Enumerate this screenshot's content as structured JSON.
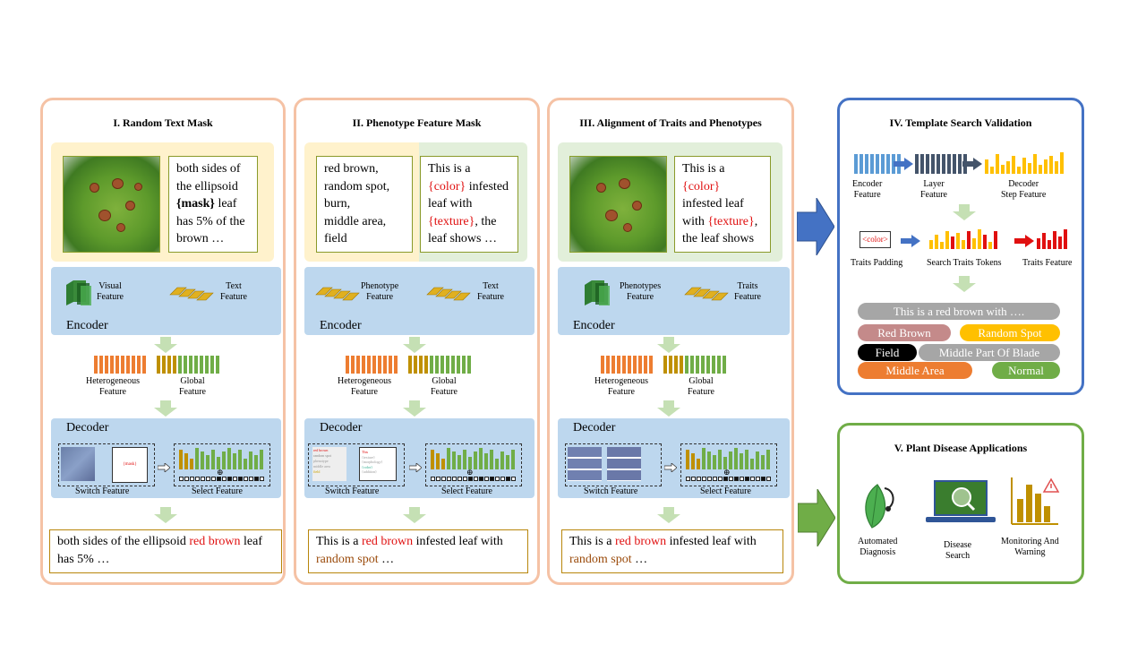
{
  "panels": {
    "p1": {
      "title": "I. Random  Text Mask",
      "text_a": "both sides of the ellipsoid ",
      "mask": "{mask}",
      "text_b": " leaf has 5% of the brown …",
      "visual": "Visual\nFeature",
      "textf": "Text\nFeature",
      "encoder": "Encoder",
      "hetero": "Heterogeneous\nFeature",
      "global": "Global\nFeature",
      "decoder": "Decoder",
      "mask_small": "{mask}",
      "switch": "Switch Feature",
      "select": "Select Feature",
      "out_a": "both sides of the ellipsoid ",
      "out_red": "red brown",
      "out_b": " leaf has 5% …"
    },
    "p2": {
      "title": "II. Phenotype  Feature Mask",
      "list": "red brown,\nrandom spot,\nburn,\nmiddle  area,\nfield",
      "t1": "This is a ",
      "t_color": "{color}",
      "t2": " infested leaf with ",
      "t_tex": "{texture}",
      "t3": ", the leaf shows …",
      "pheno": "Phenotype\nFeature",
      "textf": "Text\nFeature",
      "encoder": "Encoder",
      "hetero": "Heterogeneous\nFeature",
      "global": "Global\nFeature",
      "decoder": "Decoder",
      "switch": "Switch Feature",
      "select": "Select Feature",
      "mini_list": [
        "red brown",
        "random spot",
        "phenotype",
        "middle area",
        "field"
      ],
      "mini_r": [
        "This",
        "{texture}",
        "{morphology}",
        "{color}",
        "{addition}"
      ],
      "o1": "This is a ",
      "o_red": "red brown",
      "o2": " infested leaf with ",
      "o_brown": "random  spot",
      "o3": " …"
    },
    "p3": {
      "title": "III. Alignment of Traits and Phenotypes",
      "t1": "This is a ",
      "t_color": "{color}",
      "t2": " infested leaf with ",
      "t_tex": "{texture}",
      "t3": ", the leaf shows …",
      "pheno": "Phenotypes\nFeature",
      "traits": "Traits\nFeature",
      "encoder": "Encoder",
      "hetero": "Heterogeneous\nFeature",
      "global": "Global\nFeature",
      "decoder": "Decoder",
      "switch": "Switch Feature",
      "select": "Select Feature",
      "o1": "This is a ",
      "o_red": "red brown",
      "o2": " infested leaf with ",
      "o_brown": "random  spot",
      "o3": " …"
    },
    "p4": {
      "title": "IV. Template  Search Validation",
      "enc": "Encoder\nFeature",
      "layer": "Layer\nFeature",
      "dec": "Decoder\nStep Feature",
      "color_tag": "<color>",
      "pad": "Traits Padding",
      "search": "Search Traits Tokens",
      "traits": "Traits Feature",
      "sentence": "This is a red brown with ….",
      "pills": [
        {
          "label": "Red Brown",
          "color": "#c48a8a"
        },
        {
          "label": "Random Spot",
          "color": "#ffc000"
        },
        {
          "label": "Field",
          "color": "#000000"
        },
        {
          "label": "Middle Part Of Blade",
          "color": "#a6a6a6"
        },
        {
          "label": "Middle Area",
          "color": "#ed7d31"
        },
        {
          "label": "Normal",
          "color": "#70ad47"
        }
      ]
    },
    "p5": {
      "title": "V. Plant Disease Applications",
      "a1": "Automated\nDiagnosis",
      "a2": "Disease\nSearch",
      "a3": "Monitoring And\nWarning"
    }
  },
  "colors": {
    "orange_bar": "#ed7d31",
    "olive_bar": "#bf9000",
    "green_bar": "#70ad47",
    "blue_bar": "#5b9bd5",
    "dark_bar": "#44546a",
    "gold": "#ffc000",
    "red": "#e01010"
  }
}
